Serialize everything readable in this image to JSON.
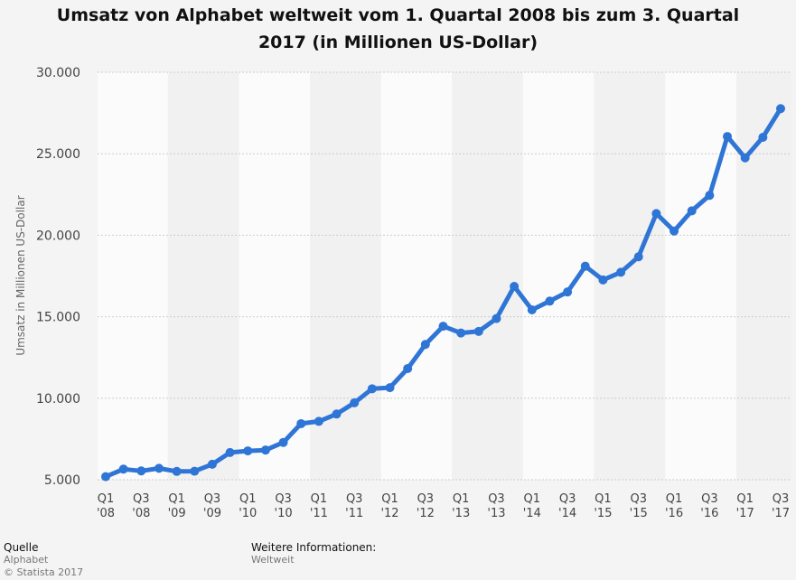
{
  "title_line1": "Umsatz von Alphabet weltweit vom 1. Quartal 2008 bis zum 3. Quartal",
  "title_line2": "2017 (in Millionen US-Dollar)",
  "footer": {
    "source_heading": "Quelle",
    "source_name": "Alphabet",
    "copyright": "© Statista 2017",
    "info_heading": "Weitere Informationen:",
    "info_value": "Weltweit"
  },
  "colors": {
    "line": "#2f75d6",
    "background": "#f4f4f4",
    "band_light": "#fbfbfb",
    "band_dark": "#f1f1f1",
    "grid": "#cccccc"
  },
  "chart_data": {
    "type": "line",
    "title": "Umsatz von Alphabet weltweit vom 1. Quartal 2008 bis zum 3. Quartal 2017 (in Millionen US-Dollar)",
    "ylabel": "Umsatz in Millionen US-Dollar",
    "xlabel": "",
    "ylim": [
      5000,
      30000
    ],
    "yticks": [
      5000,
      10000,
      15000,
      20000,
      25000,
      30000
    ],
    "ytick_labels": [
      "5.000",
      "10.000",
      "15.000",
      "20.000",
      "25.000",
      "30.000"
    ],
    "grid": true,
    "legend": "none",
    "categories": [
      "Q1 '08",
      "Q2 '08",
      "Q3 '08",
      "Q4 '08",
      "Q1 '09",
      "Q2 '09",
      "Q3 '09",
      "Q4 '09",
      "Q1 '10",
      "Q2 '10",
      "Q3 '10",
      "Q4 '10",
      "Q1 '11",
      "Q2 '11",
      "Q3 '11",
      "Q4 '11",
      "Q1 '12",
      "Q2 '12",
      "Q3 '12",
      "Q4 '12",
      "Q1 '13",
      "Q2 '13",
      "Q3 '13",
      "Q4 '13",
      "Q1 '14",
      "Q2 '14",
      "Q3 '14",
      "Q4 '14",
      "Q1 '15",
      "Q2 '15",
      "Q3 '15",
      "Q4 '15",
      "Q1 '16",
      "Q2 '16",
      "Q3 '16",
      "Q4 '16",
      "Q1 '17",
      "Q2 '17",
      "Q3 '17"
    ],
    "x_tick_labels": [
      [
        "Q1",
        "'08"
      ],
      [
        "Q3",
        "'08"
      ],
      [
        "Q1",
        "'09"
      ],
      [
        "Q3",
        "'09"
      ],
      [
        "Q1",
        "'10"
      ],
      [
        "Q3",
        "'10"
      ],
      [
        "Q1",
        "'11"
      ],
      [
        "Q3",
        "'11"
      ],
      [
        "Q1",
        "'12"
      ],
      [
        "Q3",
        "'12"
      ],
      [
        "Q1",
        "'13"
      ],
      [
        "Q3",
        "'13"
      ],
      [
        "Q1",
        "'14"
      ],
      [
        "Q3",
        "'14"
      ],
      [
        "Q1",
        "'15"
      ],
      [
        "Q3",
        "'15"
      ],
      [
        "Q1",
        "'16"
      ],
      [
        "Q3",
        "'16"
      ],
      [
        "Q1",
        "'17"
      ],
      [
        "Q3",
        "'17"
      ]
    ],
    "series": [
      {
        "values": [
          5190,
          5650,
          5540,
          5700,
          5510,
          5520,
          5950,
          6670,
          6770,
          6820,
          7290,
          8440,
          8580,
          9030,
          9720,
          10580,
          10650,
          11820,
          13300,
          14420,
          14000,
          14100,
          14890,
          16860,
          15420,
          15960,
          16520,
          18100,
          17260,
          17730,
          18680,
          21330,
          20260,
          21500,
          22450,
          26060,
          24750,
          26010,
          27770
        ]
      }
    ]
  }
}
